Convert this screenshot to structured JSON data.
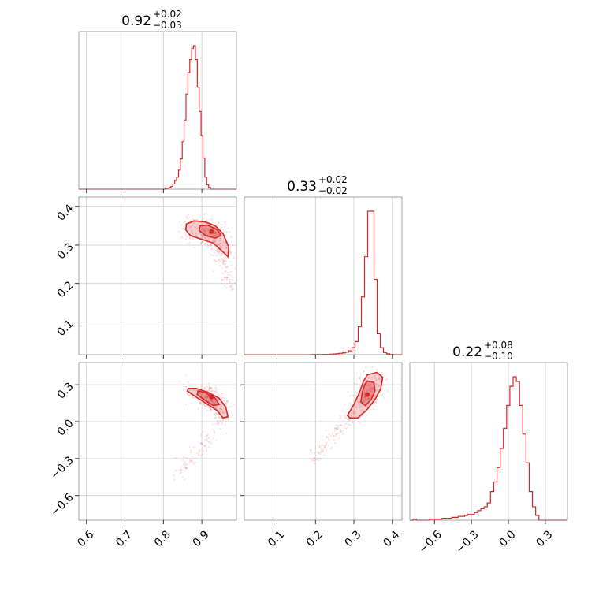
{
  "chart_data": {
    "type": "corner",
    "color": "#d62728",
    "parameters": [
      {
        "median": "0.92",
        "plus": "+0.02",
        "minus": "−0.03",
        "range": [
          0.58,
          0.99
        ],
        "ticks": [
          0.6,
          0.7,
          0.8,
          0.9
        ],
        "tick_labels": [
          "0.6",
          "0.7",
          "0.8",
          "0.9"
        ]
      },
      {
        "median": "0.33",
        "plus": "+0.02",
        "minus": "−0.02",
        "range": [
          0.015,
          0.425
        ],
        "ticks": [
          0.1,
          0.2,
          0.3,
          0.4
        ],
        "tick_labels": [
          "0.1",
          "0.2",
          "0.3",
          "0.4"
        ]
      },
      {
        "median": "0.22",
        "plus": "+0.08",
        "minus": "−0.10",
        "range": [
          -0.8,
          0.48
        ],
        "ticks": [
          -0.6,
          -0.3,
          0.0,
          0.3
        ],
        "tick_labels": [
          "−0.6",
          "−0.3",
          "0.0",
          "0.3"
        ]
      }
    ],
    "histograms": [
      {
        "param": 0,
        "edges_start": 0.8,
        "bin_width": 0.0049,
        "counts": [
          0,
          1,
          1,
          2,
          3,
          6,
          10,
          14,
          22,
          35,
          55,
          80,
          110,
          135,
          150,
          163,
          166,
          150,
          118,
          90,
          62,
          36,
          14,
          5,
          2,
          0
        ]
      },
      {
        "param": 1,
        "edges_start": 0.18,
        "bin_width": 0.0082,
        "counts": [
          0,
          1,
          1,
          1,
          1,
          2,
          2,
          3,
          4,
          6,
          8,
          10,
          14,
          22,
          40,
          75,
          160,
          330,
          560,
          820,
          820,
          430,
          120,
          40,
          12,
          5,
          2,
          0
        ]
      },
      {
        "param": 2,
        "edges_start": -0.8,
        "bin_width": 0.0262,
        "counts": [
          0,
          1,
          0,
          0,
          0,
          0,
          1,
          1,
          1,
          1,
          2,
          2,
          2,
          3,
          3,
          4,
          4,
          5,
          6,
          6,
          8,
          10,
          12,
          14,
          18,
          30,
          40,
          55,
          75,
          96,
          120,
          140,
          150,
          145,
          120,
          90,
          60,
          30,
          14,
          5,
          0
        ]
      }
    ],
    "pairs": [
      {
        "x_param": 0,
        "y_param": 1,
        "peak": [
          0.925,
          0.335
        ],
        "contour_outer": [
          [
            0.86,
            0.355
          ],
          [
            0.88,
            0.363
          ],
          [
            0.91,
            0.36
          ],
          [
            0.935,
            0.35
          ],
          [
            0.955,
            0.33
          ],
          [
            0.97,
            0.295
          ],
          [
            0.968,
            0.27
          ],
          [
            0.952,
            0.285
          ],
          [
            0.93,
            0.305
          ],
          [
            0.9,
            0.315
          ],
          [
            0.87,
            0.325
          ],
          [
            0.858,
            0.34
          ]
        ],
        "contour_inner": [
          [
            0.895,
            0.35
          ],
          [
            0.915,
            0.352
          ],
          [
            0.94,
            0.34
          ],
          [
            0.95,
            0.325
          ],
          [
            0.935,
            0.318
          ],
          [
            0.91,
            0.325
          ],
          [
            0.893,
            0.338
          ]
        ]
      },
      {
        "x_param": 0,
        "y_param": 2,
        "peak": [
          0.925,
          0.2
        ],
        "contour_outer": [
          [
            0.865,
            0.27
          ],
          [
            0.885,
            0.27
          ],
          [
            0.915,
            0.24
          ],
          [
            0.945,
            0.19
          ],
          [
            0.962,
            0.12
          ],
          [
            0.968,
            0.04
          ],
          [
            0.955,
            0.03
          ],
          [
            0.94,
            0.09
          ],
          [
            0.91,
            0.15
          ],
          [
            0.885,
            0.2
          ],
          [
            0.862,
            0.25
          ]
        ],
        "contour_inner": [
          [
            0.89,
            0.25
          ],
          [
            0.91,
            0.235
          ],
          [
            0.935,
            0.19
          ],
          [
            0.945,
            0.14
          ],
          [
            0.93,
            0.13
          ],
          [
            0.91,
            0.17
          ],
          [
            0.888,
            0.22
          ]
        ]
      },
      {
        "x_param": 1,
        "y_param": 2,
        "peak": [
          0.335,
          0.22
        ],
        "contour_outer": [
          [
            0.335,
            0.38
          ],
          [
            0.36,
            0.4
          ],
          [
            0.375,
            0.36
          ],
          [
            0.37,
            0.27
          ],
          [
            0.355,
            0.18
          ],
          [
            0.335,
            0.1
          ],
          [
            0.31,
            0.03
          ],
          [
            0.29,
            0.03
          ],
          [
            0.283,
            0.05
          ],
          [
            0.3,
            0.14
          ],
          [
            0.315,
            0.24
          ],
          [
            0.325,
            0.33
          ]
        ],
        "contour_inner": [
          [
            0.335,
            0.33
          ],
          [
            0.352,
            0.32
          ],
          [
            0.355,
            0.25
          ],
          [
            0.345,
            0.18
          ],
          [
            0.33,
            0.13
          ],
          [
            0.318,
            0.16
          ],
          [
            0.322,
            0.24
          ],
          [
            0.328,
            0.3
          ]
        ]
      }
    ],
    "grid": true,
    "scatter_points": "faint sample cloud",
    "contour_levels": 2
  }
}
